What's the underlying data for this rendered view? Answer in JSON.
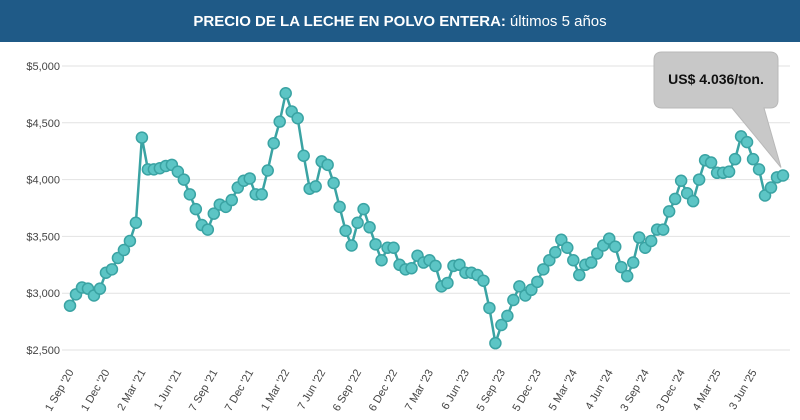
{
  "header": {
    "title_bold": "PRECIO DE LA LECHE EN POLVO ENTERA:",
    "title_rest": "últimos 5 años"
  },
  "callout": {
    "text": "US$ 4.036/ton."
  },
  "colors": {
    "header_bg": "#1f5a87",
    "line": "#3aa3a3",
    "marker": "#5cc5c5",
    "callout_bg": "#c8c8c8"
  },
  "chart_data": {
    "type": "line",
    "title": "PRECIO DE LA LECHE EN POLVO ENTERA: últimos 5 años",
    "xlabel": "",
    "ylabel": "",
    "ylim": [
      2500,
      5000
    ],
    "y_ticks": [
      2500,
      3000,
      3500,
      4000,
      4500,
      5000
    ],
    "y_tick_labels": [
      "$2,500",
      "$3,000",
      "$3,500",
      "$4,000",
      "$4,500",
      "$5,000"
    ],
    "x_tick_labels": [
      "1 Sep '20",
      "1 Dec '20",
      "2 Mar '21",
      "1 Jun '21",
      "7 Sep '21",
      "7 Dec '21",
      "1 Mar '22",
      "7 Jun '22",
      "6 Sep '22",
      "6 Dec '22",
      "7 Mar '23",
      "6 Jun '23",
      "5 Sep '23",
      "5 Dec '23",
      "5 Mar '24",
      "4 Jun '24",
      "3 Sep '24",
      "3 Dec '24",
      "4 Mar '25",
      "3 Jun '25"
    ],
    "x_tick_index": [
      0,
      6,
      12,
      18,
      24,
      30,
      36,
      42,
      48,
      54,
      60,
      66,
      72,
      78,
      84,
      90,
      96,
      102,
      108,
      114
    ],
    "grid": true,
    "legend": "none",
    "series": [
      {
        "values": [
          2890,
          2990,
          3050,
          3040,
          2980,
          3040,
          3180,
          3210,
          3310,
          3380,
          3460,
          3620,
          4370,
          4090,
          4090,
          4100,
          4120,
          4130,
          4070,
          4000,
          3870,
          3740,
          3600,
          3560,
          3700,
          3780,
          3760,
          3820,
          3930,
          3990,
          4010,
          3870,
          3870,
          4080,
          4320,
          4510,
          4760,
          4600,
          4540,
          4210,
          3920,
          3940,
          4160,
          4130,
          3970,
          3760,
          3550,
          3420,
          3620,
          3740,
          3580,
          3430,
          3290,
          3400,
          3400,
          3250,
          3210,
          3220,
          3330,
          3270,
          3290,
          3240,
          3060,
          3090,
          3240,
          3250,
          3180,
          3180,
          3160,
          3110,
          2870,
          2560,
          2720,
          2800,
          2940,
          3060,
          2980,
          3030,
          3100,
          3210,
          3290,
          3360,
          3470,
          3400,
          3290,
          3160,
          3250,
          3270,
          3350,
          3420,
          3480,
          3410,
          3230,
          3150,
          3270,
          3490,
          3400,
          3460,
          3560,
          3560,
          3720,
          3830,
          3990,
          3880,
          3810,
          4000,
          4170,
          4150,
          4060,
          4060,
          4070,
          4180,
          4380,
          4330,
          4180,
          4090,
          3860,
          3930,
          4020,
          4036
        ]
      }
    ]
  }
}
